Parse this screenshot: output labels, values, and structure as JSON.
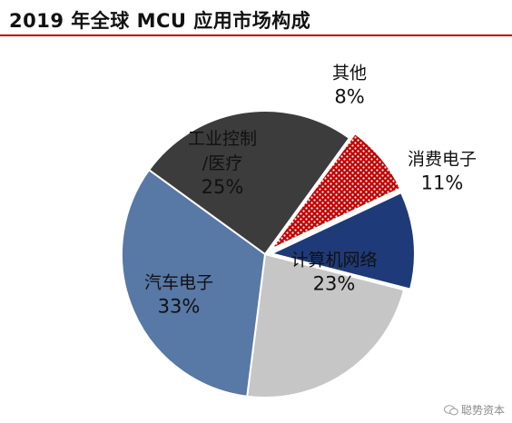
{
  "title": "2019 年全球 MCU 应用市场构成",
  "watermark": "聪势资本",
  "chart_data": {
    "type": "pie",
    "slices": [
      {
        "name": "其他",
        "pct": "8%",
        "value": 8,
        "color": "#c00000",
        "pattern": "white-dots"
      },
      {
        "name": "消费电子",
        "pct": "11%",
        "value": 11,
        "color": "#1f3a78"
      },
      {
        "name": "计算机网络",
        "pct": "23%",
        "value": 23,
        "color": "#c6c6c6"
      },
      {
        "name": "汽车电子",
        "pct": "33%",
        "value": 33,
        "color": "#5878a6"
      },
      {
        "name": "工业控制/医疗",
        "label_lines": [
          "工业控制",
          "/医疗"
        ],
        "pct": "25%",
        "value": 25,
        "color": "#3c3c3c"
      }
    ]
  }
}
